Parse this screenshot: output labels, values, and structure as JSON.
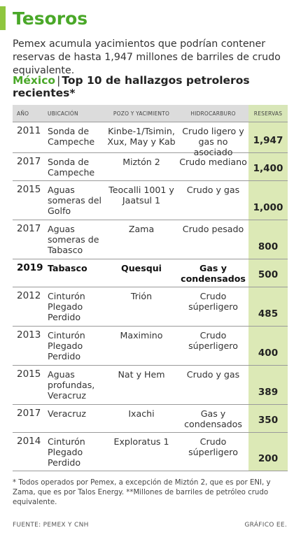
{
  "title": "Tesoros",
  "intro": "Pemex acumula yacimientos que podrían contener reservas de hasta 1,947 millones de barriles de crudo equivalente.",
  "subtitle": {
    "country": "México",
    "separator": "|",
    "text": "Top 10 de hallazgos petroleros recientes*"
  },
  "colors": {
    "accent_green": "#4aa829",
    "bar_green": "#8fc63f",
    "reserves_bg": "#dce9b6",
    "header_bg": "#dcdcdc"
  },
  "chart_data": {
    "type": "table",
    "columns": [
      "AÑO",
      "UBICACIÓN",
      "POZO Y YACIMIENTO",
      "HIDROCARBURO",
      "RESERVAS"
    ],
    "rows": [
      {
        "year": "2011",
        "ubicacion": "Sonda de Campeche",
        "pozo": "Kinbe-1/Tsimin, Xux, May y Kab",
        "hidrocarburo": "Crudo ligero y gas no asociado",
        "reservas": "1,947",
        "reservas_value": 1947,
        "bold": false
      },
      {
        "year": "2017",
        "ubicacion": "Sonda de Campeche",
        "pozo": "Miztón 2",
        "hidrocarburo": "Crudo mediano",
        "reservas": "1,400",
        "reservas_value": 1400,
        "bold": false
      },
      {
        "year": "2015",
        "ubicacion": "Aguas someras del Golfo",
        "pozo": "Teocalli 1001 y Jaatsul 1",
        "hidrocarburo": "Crudo y gas",
        "reservas": "1,000",
        "reservas_value": 1000,
        "bold": false
      },
      {
        "year": "2017",
        "ubicacion": "Aguas someras de Tabasco",
        "pozo": "Zama",
        "hidrocarburo": "Crudo pesado",
        "reservas": "800",
        "reservas_value": 800,
        "bold": false
      },
      {
        "year": "2019",
        "ubicacion": "Tabasco",
        "pozo": "Quesqui",
        "hidrocarburo": "Gas y condensados",
        "reservas": "500",
        "reservas_value": 500,
        "bold": true
      },
      {
        "year": "2012",
        "ubicacion": "Cinturón Plegado Perdido",
        "pozo": "Trión",
        "hidrocarburo": "Crudo súperligero",
        "reservas": "485",
        "reservas_value": 485,
        "bold": false
      },
      {
        "year": "2013",
        "ubicacion": "Cinturón Plegado Perdido",
        "pozo": "Maximino",
        "hidrocarburo": "Crudo súperligero",
        "reservas": "400",
        "reservas_value": 400,
        "bold": false
      },
      {
        "year": "2015",
        "ubicacion": "Aguas profundas, Veracruz",
        "pozo": "Nat y Hem",
        "hidrocarburo": "Crudo y gas",
        "reservas": "389",
        "reservas_value": 389,
        "bold": false
      },
      {
        "year": "2017",
        "ubicacion": "Veracruz",
        "pozo": "Ixachi",
        "hidrocarburo": "Gas y condensados",
        "reservas": "350",
        "reservas_value": 350,
        "bold": false
      },
      {
        "year": "2014",
        "ubicacion": "Cinturón Plegado Perdido",
        "pozo": "Exploratus 1",
        "hidrocarburo": "Crudo súperligero",
        "reservas": "200",
        "reservas_value": 200,
        "bold": false
      }
    ]
  },
  "footnote": "* Todos operados por Pemex, a excepción de Miztón 2, que es por ENI, y Zama, que es por Talos Energy. **Millones de barriles de petróleo crudo equivalente.",
  "source": "FUENTE: PEMEX Y CNH",
  "credit": "GRÁFICO EE."
}
